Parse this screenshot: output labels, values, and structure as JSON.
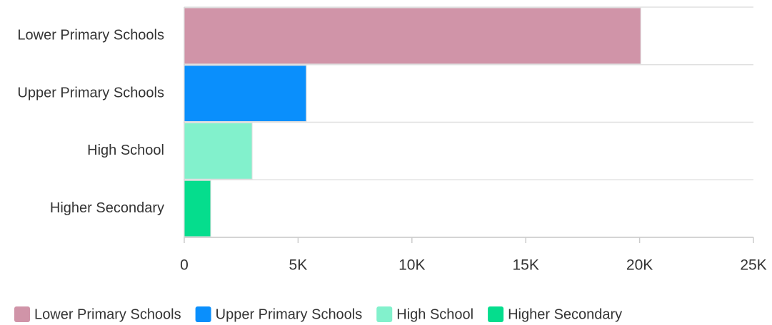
{
  "chart_data": {
    "type": "bar",
    "orientation": "horizontal",
    "categories": [
      "Lower Primary Schools",
      "Upper Primary Schools",
      "High School",
      "Higher Secondary"
    ],
    "values": [
      20050,
      5360,
      2980,
      1160
    ],
    "colors": [
      "#d094a8",
      "#0a8ffc",
      "#82f1cc",
      "#05dd8d"
    ],
    "xlim": [
      0,
      25000
    ],
    "xticks": [
      0,
      {
        "value": 5000,
        "label": "5K"
      },
      {
        "value": 10000,
        "label": "10K"
      },
      {
        "value": 15000,
        "label": "15K"
      },
      {
        "value": 20000,
        "label": "20K"
      },
      {
        "value": 25000,
        "label": "25K"
      }
    ],
    "grid": true,
    "legend": "bottom-left"
  }
}
